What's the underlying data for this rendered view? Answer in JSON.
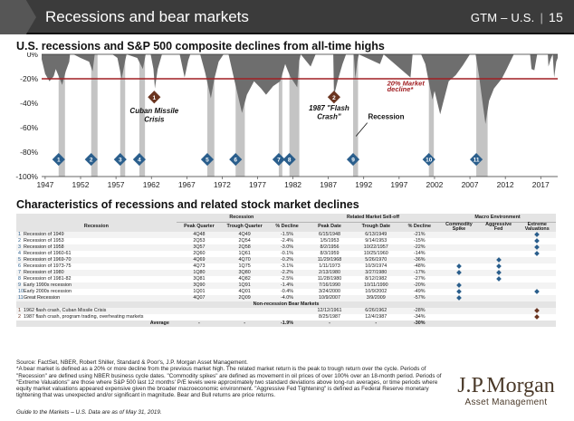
{
  "header": {
    "title": "Recessions and bear markets",
    "series": "GTM – U.S.",
    "separator": "|",
    "page": "15"
  },
  "chart_title": "U.S. recessions and S&P 500 composite declines from all-time highs",
  "chart_data": {
    "type": "area",
    "title": "U.S. recessions and S&P 500 composite declines from all-time highs",
    "x_ticks": [
      1947,
      1952,
      1957,
      1962,
      1967,
      1972,
      1977,
      1982,
      1987,
      1992,
      1997,
      2002,
      2007,
      2012,
      2017
    ],
    "y_ticks": [
      "0%",
      "-20%",
      "-40%",
      "-60%",
      "-80%",
      "-100%"
    ],
    "xlim": [
      1946.5,
      2019.4
    ],
    "ylim": [
      -100,
      0
    ],
    "threshold": -20,
    "threshold_label": [
      "20% Market",
      "decline*"
    ],
    "drawdown_series": [
      [
        1946.5,
        -4
      ],
      [
        1947,
        -16
      ],
      [
        1947.6,
        -22
      ],
      [
        1948.2,
        -18
      ],
      [
        1948.5,
        -12
      ],
      [
        1949.4,
        -25
      ],
      [
        1949.9,
        -14
      ],
      [
        1950.4,
        -6
      ],
      [
        1950.5,
        0
      ],
      [
        1951,
        0
      ],
      [
        1952,
        -3
      ],
      [
        1953.2,
        -6
      ],
      [
        1953.7,
        -14
      ],
      [
        1954,
        0
      ],
      [
        1955,
        0
      ],
      [
        1956.5,
        0
      ],
      [
        1957.2,
        -3
      ],
      [
        1957.8,
        -20
      ],
      [
        1958.3,
        -5
      ],
      [
        1958.5,
        0
      ],
      [
        1960,
        -3
      ],
      [
        1960.8,
        -12
      ],
      [
        1961.2,
        0
      ],
      [
        1961.9,
        0
      ],
      [
        1962.3,
        -12
      ],
      [
        1962.5,
        -28
      ],
      [
        1962.9,
        -12
      ],
      [
        1963.5,
        0
      ],
      [
        1966,
        0
      ],
      [
        1966.7,
        -19
      ],
      [
        1967.2,
        -5
      ],
      [
        1967.5,
        0
      ],
      [
        1968.9,
        0
      ],
      [
        1969.6,
        -15
      ],
      [
        1970.4,
        -36
      ],
      [
        1970.9,
        -20
      ],
      [
        1971.5,
        -6
      ],
      [
        1972.2,
        0
      ],
      [
        1972.9,
        0
      ],
      [
        1973.6,
        -18
      ],
      [
        1974.4,
        -38
      ],
      [
        1974.8,
        -48
      ],
      [
        1975.5,
        -33
      ],
      [
        1976.5,
        -22
      ],
      [
        1977.5,
        -28
      ],
      [
        1978.2,
        -33
      ],
      [
        1979.2,
        -26
      ],
      [
        1980.2,
        -22
      ],
      [
        1980.9,
        -8
      ],
      [
        1981.6,
        -18
      ],
      [
        1982.6,
        -27
      ],
      [
        1982.9,
        -5
      ],
      [
        1983.1,
        0
      ],
      [
        1984.5,
        -10
      ],
      [
        1985.2,
        0
      ],
      [
        1987,
        0
      ],
      [
        1987.7,
        0
      ],
      [
        1987.8,
        -34
      ],
      [
        1988.3,
        -22
      ],
      [
        1989,
        -8
      ],
      [
        1989.5,
        0
      ],
      [
        1990.6,
        0
      ],
      [
        1990.8,
        -20
      ],
      [
        1991.1,
        -6
      ],
      [
        1991.3,
        0
      ],
      [
        1994.3,
        -8
      ],
      [
        1994.8,
        0
      ],
      [
        1998.6,
        -19
      ],
      [
        1998.9,
        0
      ],
      [
        2000.1,
        0
      ],
      [
        2000.7,
        -8
      ],
      [
        2001.3,
        -26
      ],
      [
        2001.7,
        -37
      ],
      [
        2002,
        -30
      ],
      [
        2002.5,
        -42
      ],
      [
        2002.8,
        -49
      ],
      [
        2003.2,
        -40
      ],
      [
        2004,
        -22
      ],
      [
        2005,
        -17
      ],
      [
        2006,
        -9
      ],
      [
        2007,
        0
      ],
      [
        2007.8,
        0
      ],
      [
        2008.3,
        -18
      ],
      [
        2008.8,
        -40
      ],
      [
        2009.2,
        -57
      ],
      [
        2009.7,
        -38
      ],
      [
        2010.4,
        -28
      ],
      [
        2011.5,
        -20
      ],
      [
        2012.2,
        -12
      ],
      [
        2013.2,
        0
      ],
      [
        2015.5,
        0
      ],
      [
        2015.7,
        -12
      ],
      [
        2016.1,
        -13
      ],
      [
        2016.5,
        0
      ],
      [
        2018,
        0
      ],
      [
        2018.1,
        -10
      ],
      [
        2018.4,
        -4
      ],
      [
        2018.7,
        0
      ],
      [
        2018.9,
        -19
      ],
      [
        2019.2,
        -6
      ],
      [
        2019.4,
        -3
      ]
    ],
    "recessions": [
      [
        1948.9,
        1949.8
      ],
      [
        1953.5,
        1954.4
      ],
      [
        1957.6,
        1958.3
      ],
      [
        1960.3,
        1961.1
      ],
      [
        1969.9,
        1970.9
      ],
      [
        1973.9,
        1975.2
      ],
      [
        1980.0,
        1980.5
      ],
      [
        1981.5,
        1982.9
      ],
      [
        1990.5,
        1991.2
      ],
      [
        2001.2,
        2001.9
      ],
      [
        2007.9,
        2009.5
      ]
    ],
    "recession_markers": [
      {
        "label": "1",
        "year": 1948.9
      },
      {
        "label": "2",
        "year": 1953.5
      },
      {
        "label": "3",
        "year": 1957.6
      },
      {
        "label": "4",
        "year": 1960.3
      },
      {
        "label": "5",
        "year": 1969.9
      },
      {
        "label": "6",
        "year": 1973.9
      },
      {
        "label": "7",
        "year": 1980.0
      },
      {
        "label": "8",
        "year": 1981.5
      },
      {
        "label": "9",
        "year": 1990.5
      },
      {
        "label": "10",
        "year": 2001.2
      },
      {
        "label": "11",
        "year": 2007.9
      }
    ],
    "bear_markers": [
      {
        "label": "1",
        "year": 1962.4,
        "level": -35,
        "text": [
          "Cuban Missile",
          "Crisis"
        ]
      },
      {
        "label": "2",
        "year": 1987.8,
        "level": -35,
        "text": [
          "1987 \"Flash",
          "Crash\""
        ]
      }
    ],
    "legend": "Recession",
    "colors": {
      "area": "#6e6e6e",
      "recession": "#c4c4c4",
      "threshold": "#a01e22",
      "marker_blue": "#2a5e8c",
      "marker_brown": "#6b3520",
      "threshold_text": "#a01e22"
    }
  },
  "table_title": "Characteristics of recessions and related stock market declines",
  "table": {
    "group_headers": {
      "recession": "Recession",
      "selloff": "Related Market Sell-off",
      "macro": "Macro Environment"
    },
    "col_headers": {
      "recession": "Recession",
      "peak_quarter": "Peak Quarter",
      "trough_quarter": "Trough Quarter",
      "pct_decline": "% Decline",
      "peak_date": "Peak Date",
      "trough_date": "Trough Date",
      "pct_decline2": "% Decline",
      "commodity": [
        "Commodity",
        "Spike"
      ],
      "aggressive": [
        "Aggressive",
        "Fed"
      ],
      "extreme": [
        "Extreme",
        "Valuations"
      ]
    },
    "rows": [
      {
        "n": "1",
        "name": "Recession of 1949",
        "pq": "4Q48",
        "tq": "4Q49",
        "pd": "-1.5%",
        "peak": "6/15/1948",
        "trough": "6/13/1949",
        "sd": "-21%",
        "c": false,
        "a": false,
        "e": true
      },
      {
        "n": "2",
        "name": "Recession of 1953",
        "pq": "2Q53",
        "tq": "2Q54",
        "pd": "-2.4%",
        "peak": "1/5/1953",
        "trough": "9/14/1953",
        "sd": "-15%",
        "c": false,
        "a": false,
        "e": true
      },
      {
        "n": "3",
        "name": "Recession of 1958",
        "pq": "3Q57",
        "tq": "2Q58",
        "pd": "-3.0%",
        "peak": "8/2/1956",
        "trough": "10/22/1957",
        "sd": "-22%",
        "c": false,
        "a": false,
        "e": true
      },
      {
        "n": "4",
        "name": "Recession of 1960-61",
        "pq": "2Q60",
        "tq": "1Q61",
        "pd": "-0.1%",
        "peak": "8/3/1959",
        "trough": "10/25/1960",
        "sd": "-14%",
        "c": false,
        "a": false,
        "e": true
      },
      {
        "n": "5",
        "name": "Recession of 1969-70",
        "pq": "4Q69",
        "tq": "4Q70",
        "pd": "-0.2%",
        "peak": "11/29/1968",
        "trough": "5/26/1970",
        "sd": "-36%",
        "c": false,
        "a": true,
        "e": false
      },
      {
        "n": "6",
        "name": "Recession of 1973-75",
        "pq": "4Q73",
        "tq": "1Q75",
        "pd": "-3.1%",
        "peak": "1/11/1973",
        "trough": "10/3/1974",
        "sd": "-48%",
        "c": true,
        "a": true,
        "e": false
      },
      {
        "n": "7",
        "name": "Recession of 1980",
        "pq": "1Q80",
        "tq": "3Q80",
        "pd": "-2.2%",
        "peak": "2/13/1980",
        "trough": "3/27/1980",
        "sd": "-17%",
        "c": true,
        "a": true,
        "e": false
      },
      {
        "n": "8",
        "name": "Recession of 1981-82",
        "pq": "3Q81",
        "tq": "4Q82",
        "pd": "-2.5%",
        "peak": "11/28/1980",
        "trough": "8/12/1982",
        "sd": "-27%",
        "c": false,
        "a": true,
        "e": false
      },
      {
        "n": "9",
        "name": "Early 1990s recession",
        "pq": "3Q90",
        "tq": "1Q91",
        "pd": "-1.4%",
        "peak": "7/16/1990",
        "trough": "10/11/1990",
        "sd": "-20%",
        "c": true,
        "a": false,
        "e": false
      },
      {
        "n": "10",
        "name": "Early 2000s recession",
        "pq": "1Q01",
        "tq": "4Q01",
        "pd": "-0.4%",
        "peak": "3/24/2000",
        "trough": "10/9/2002",
        "sd": "-49%",
        "c": true,
        "a": false,
        "e": true
      },
      {
        "n": "11",
        "name": "Great Recession",
        "pq": "4Q07",
        "tq": "2Q09",
        "pd": "-4.0%",
        "peak": "10/9/2007",
        "trough": "3/9/2009",
        "sd": "-57%",
        "c": true,
        "a": false,
        "e": false
      }
    ],
    "nonrec_header": "Non-recession Bear Markets",
    "nonrec_rows": [
      {
        "n": "1",
        "name": "1962 flash crash, Cuban Missile Crisis",
        "peak": "12/12/1961",
        "trough": "6/26/1962",
        "sd": "-28%",
        "c": false,
        "a": false,
        "e": true
      },
      {
        "n": "2",
        "name": "1987 flash crash, program trading, overheating markets",
        "peak": "8/25/1987",
        "trough": "12/4/1987",
        "sd": "-34%",
        "c": false,
        "a": false,
        "e": true
      }
    ],
    "average": {
      "label": "Average",
      "pd": "-1.9%",
      "peak": "-",
      "trough": "-",
      "sd": "-30%",
      "pq": "-",
      "tq": "-"
    }
  },
  "source_lines": [
    "Source: FactSet, NBER, Robert Shiller, Standard & Poor's, J.P. Morgan Asset Management.",
    "*A bear market is defined as a 20% or more decline from the previous market high. The related market return is the peak to trough return over the cycle. Periods of \"Recession\" are defined using NBER business cycle dates. \"Commodity spikes\" are defined as movement in oil prices of over 100% over an 18-month period. Periods of \"Extreme Valuations\" are those where S&P 500 last 12 months' P/E levels were approximately two standard deviations above long-run averages, or time periods where equity market valuations appeared expensive given the broader macroeconomic environment. \"Aggressive Fed Tightening\" is defined as Federal Reserve monetary tightening that was unexpected and/or significant in magnitude. Bear and Bull returns are price returns."
  ],
  "guide_note": "Guide to the Markets – U.S. Data are as of May 31, 2019.",
  "logo": {
    "name": "J.P.Morgan",
    "sub": "Asset Management"
  }
}
